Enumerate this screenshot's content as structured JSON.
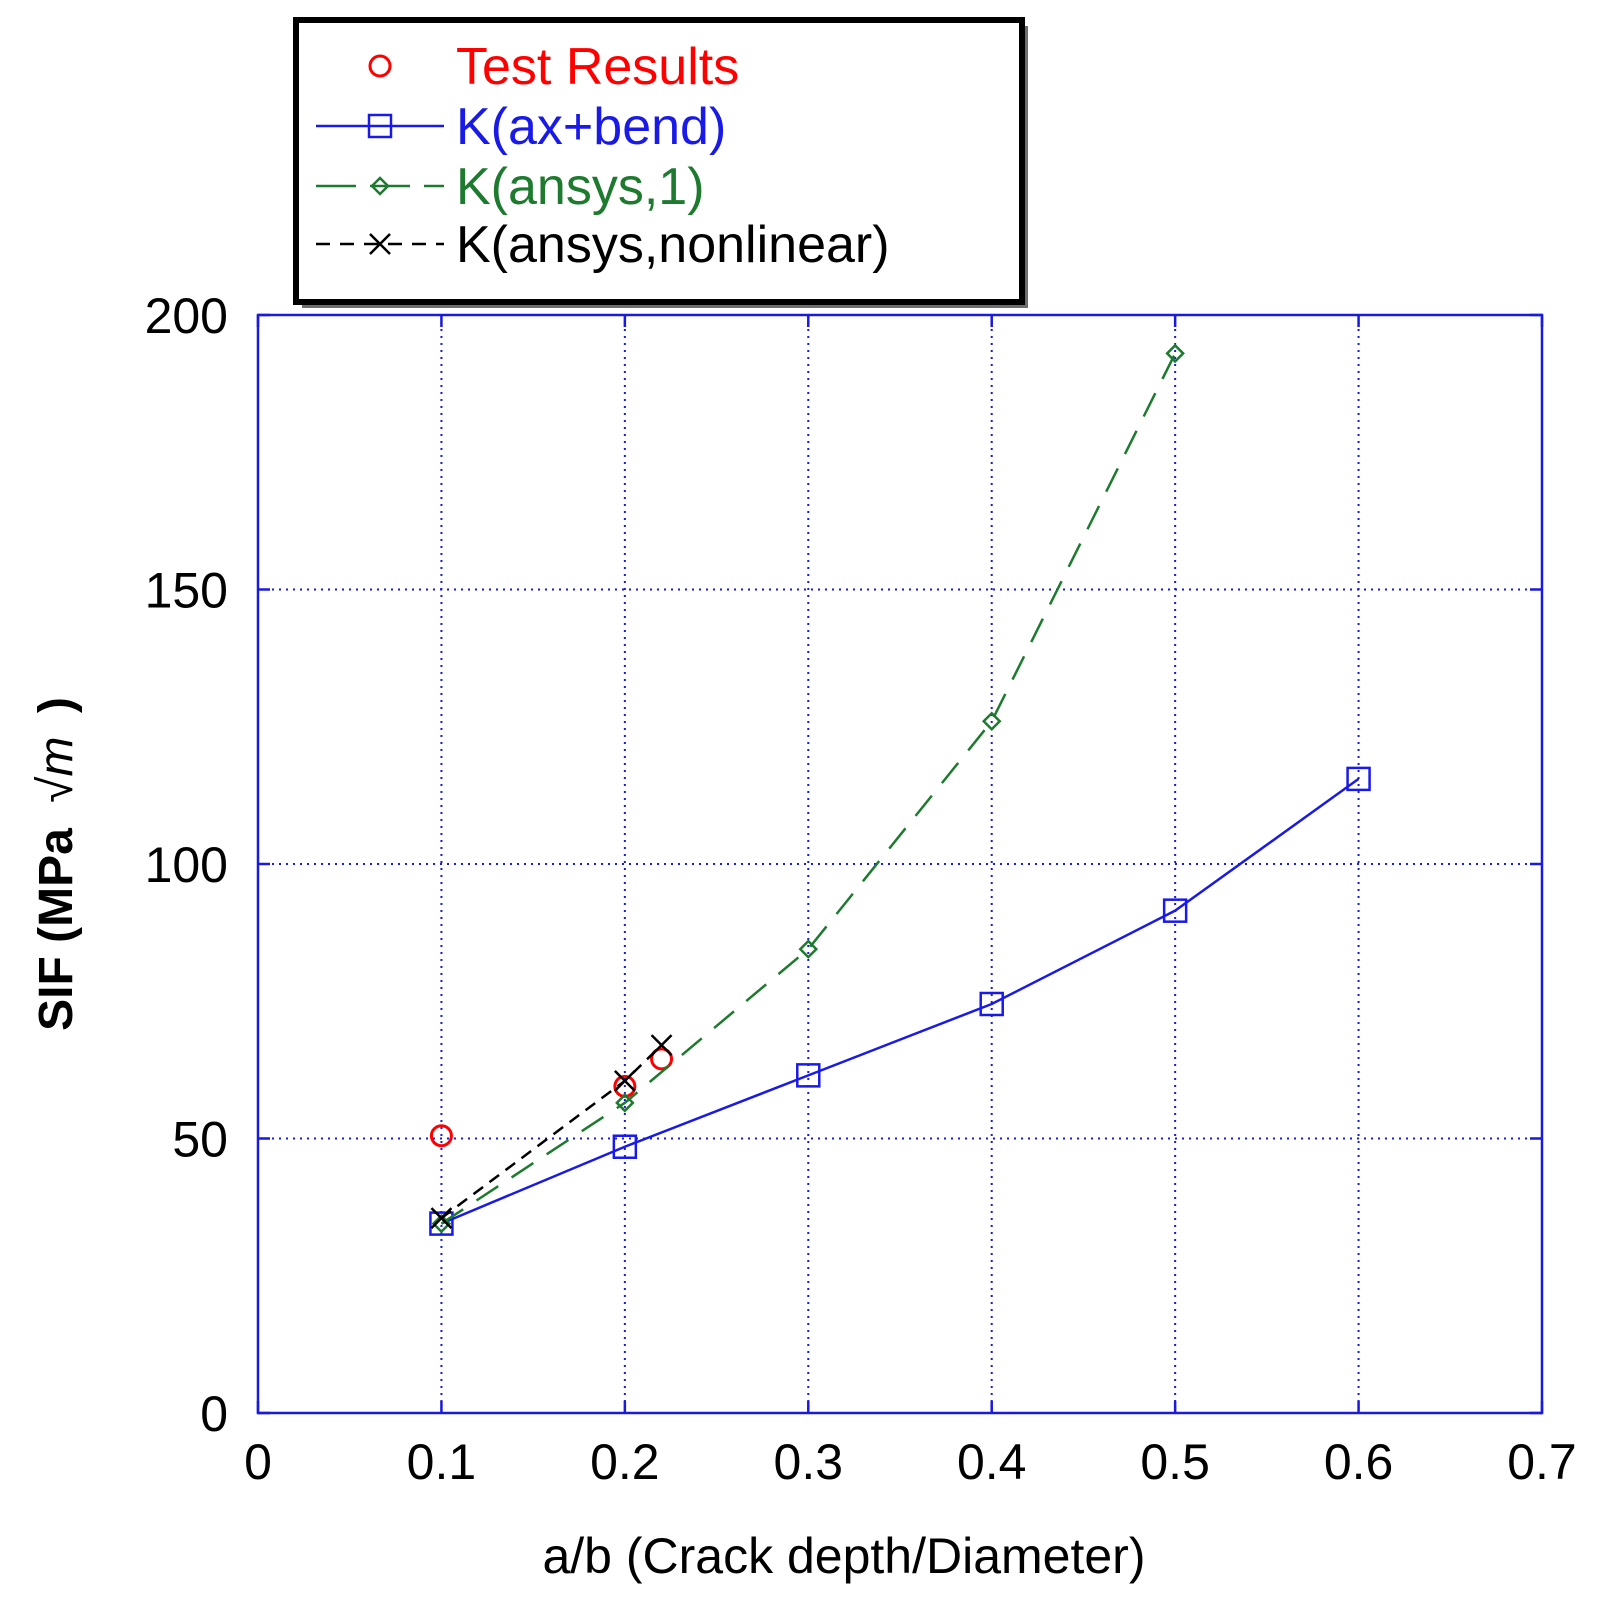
{
  "chart_data": {
    "type": "line",
    "xlabel": "a/b (Crack depth/Diameter)",
    "ylabel": "SIF (MPa",
    "ylabel_unit": "√m",
    "ylabel_close": ")",
    "xlim": [
      0,
      0.7
    ],
    "ylim": [
      0,
      200
    ],
    "x_ticks": [
      0,
      0.1,
      0.2,
      0.3,
      0.4,
      0.5,
      0.6,
      0.7
    ],
    "x_tick_labels": [
      "0",
      "0.1",
      "0.2",
      "0.3",
      "0.4",
      "0.5",
      "0.6",
      "0.7"
    ],
    "y_ticks": [
      0,
      50,
      100,
      150,
      200
    ],
    "y_tick_labels": [
      "0",
      "50",
      "100",
      "150",
      "200"
    ],
    "grid": true,
    "legend_position": "top-left",
    "colors": {
      "axes": "#1a1adb",
      "grid": "#1a1adb"
    },
    "series": [
      {
        "name": "Test Results",
        "color": "#ff0000",
        "marker": "circle",
        "line": "none",
        "x": [
          0.1,
          0.2,
          0.22
        ],
        "y": [
          50.5,
          59.5,
          64.5
        ]
      },
      {
        "name": "K(ax+bend)",
        "color": "#1a1ae6",
        "marker": "square",
        "line": "solid",
        "x": [
          0.1,
          0.2,
          0.3,
          0.4,
          0.5,
          0.6
        ],
        "y": [
          34.5,
          48.5,
          61.5,
          74.5,
          91.5,
          115.5
        ]
      },
      {
        "name": "K(ansys,1)",
        "color": "#1e7a2e",
        "marker": "diamond",
        "line": "dashed",
        "x": [
          0.1,
          0.2,
          0.3,
          0.4,
          0.5
        ],
        "y": [
          34.5,
          56.5,
          84.5,
          126,
          193
        ]
      },
      {
        "name": "K(ansys,nonlinear)",
        "color": "#000000",
        "marker": "x",
        "line": "dashed",
        "x": [
          0.1,
          0.2,
          0.22
        ],
        "y": [
          35.5,
          60.5,
          67
        ]
      }
    ]
  }
}
